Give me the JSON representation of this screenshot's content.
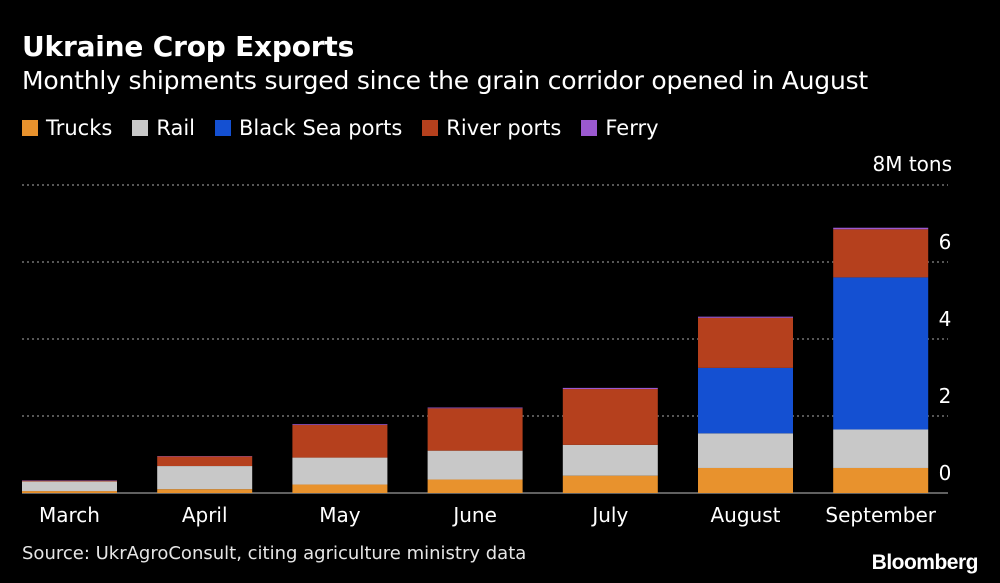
{
  "header": {
    "title": "Ukraine Crop Exports",
    "subtitle": "Monthly shipments surged since the grain corridor opened in August"
  },
  "footer": {
    "source": "Source: UkrAgroConsult, citing agriculture ministry data",
    "brand": "Bloomberg"
  },
  "colors": {
    "background": "#000000",
    "gridline": "#8a8a8a",
    "text": "#ffffff"
  },
  "chart_data": {
    "type": "bar",
    "stacked": true,
    "title": "Ukraine Crop Exports",
    "subtitle": "Monthly shipments surged since the grain corridor opened in August",
    "ylabel": "8M tons",
    "xlabel": "",
    "ylim": [
      0,
      8
    ],
    "yticks": [
      0,
      2,
      4,
      6,
      8
    ],
    "ytick_labels": [
      "0",
      "2",
      "4",
      "6",
      "8M tons"
    ],
    "legend_position": "top-left",
    "categories": [
      "March",
      "April",
      "May",
      "June",
      "July",
      "August",
      "September"
    ],
    "series": [
      {
        "name": "Trucks",
        "color": "#e8922d",
        "values": [
          0.05,
          0.1,
          0.22,
          0.35,
          0.45,
          0.65,
          0.65
        ]
      },
      {
        "name": "Rail",
        "color": "#c8c8c8",
        "values": [
          0.25,
          0.6,
          0.7,
          0.75,
          0.8,
          0.9,
          1.0
        ]
      },
      {
        "name": "Black Sea ports",
        "color": "#1450d2",
        "values": [
          0,
          0,
          0,
          0,
          0,
          1.7,
          3.95
        ]
      },
      {
        "name": "River ports",
        "color": "#b5401d",
        "values": [
          0.02,
          0.25,
          0.85,
          1.1,
          1.45,
          1.3,
          1.25
        ]
      },
      {
        "name": "Ferry",
        "color": "#9b59d0",
        "values": [
          0.01,
          0.01,
          0.02,
          0.02,
          0.03,
          0.03,
          0.04
        ]
      }
    ]
  }
}
